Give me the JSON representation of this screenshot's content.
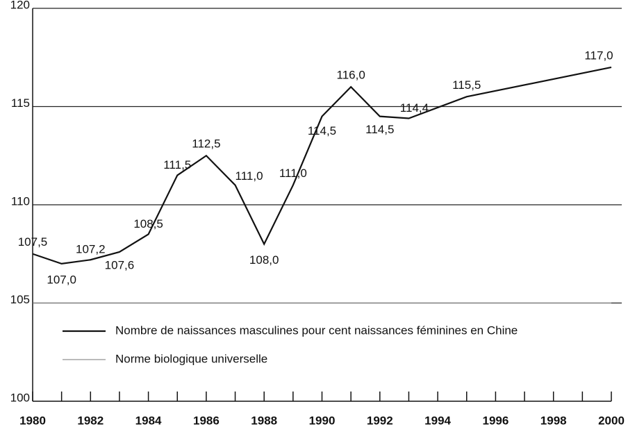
{
  "chart_data": {
    "type": "line",
    "xlim": [
      1980,
      2000
    ],
    "xticks": [
      1980,
      1982,
      1984,
      1986,
      1988,
      1990,
      1992,
      1994,
      1996,
      1998,
      2000
    ],
    "ylim": [
      100,
      120
    ],
    "yticks": [
      100,
      105,
      110,
      115,
      120
    ],
    "grid": true,
    "legend": "lower-left",
    "series": [
      {
        "name": "Nombre de naissances masculines pour cent naissances féminines en Chine",
        "color": "#111111",
        "x": [
          1980,
          1981,
          1982,
          1983,
          1984,
          1985,
          1986,
          1987,
          1988,
          1989,
          1990,
          1991,
          1992,
          1993,
          1995,
          2000
        ],
        "values": [
          107.5,
          107.0,
          107.2,
          107.6,
          108.5,
          111.5,
          112.5,
          111.0,
          108.0,
          111.0,
          114.5,
          116.0,
          114.5,
          114.4,
          115.5,
          117.0
        ],
        "value_labels": [
          "107,5",
          "107,0",
          "107,2",
          "107,6",
          "108,5",
          "111,5",
          "112,5",
          "111,0",
          "108,0",
          "111,0",
          "114,5",
          "116,0",
          "114,5",
          "114,4",
          "115,5",
          "117,0"
        ]
      },
      {
        "name": "Norme biologique universelle",
        "color": "#777777",
        "x": [
          1980,
          2000
        ],
        "values": [
          105,
          105
        ]
      }
    ]
  }
}
